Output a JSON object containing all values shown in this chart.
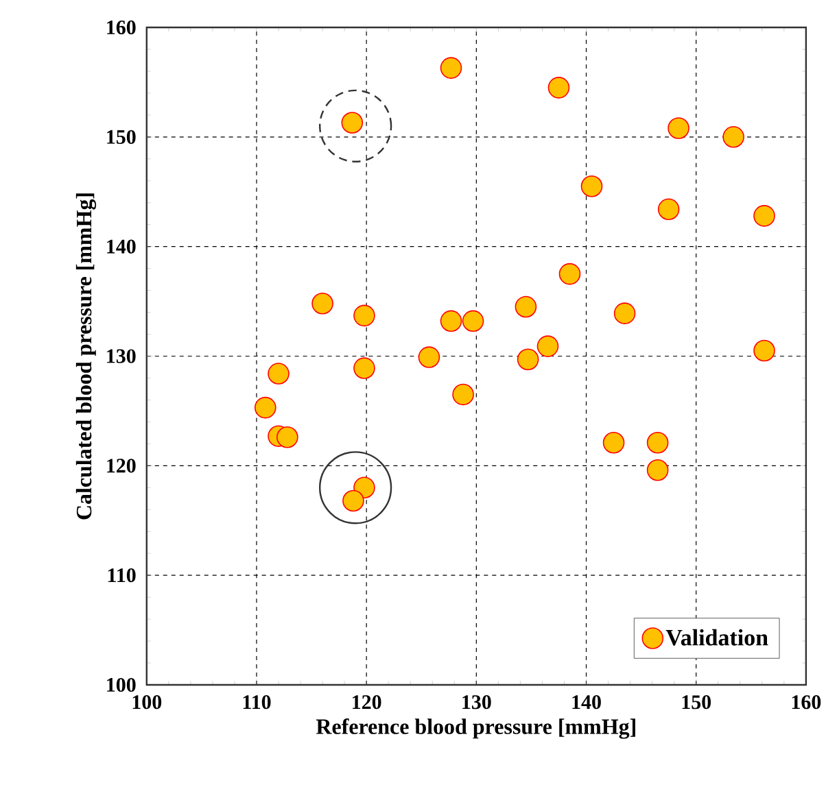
{
  "chart_data": {
    "type": "scatter",
    "xlabel": "Reference blood pressure [mmHg]",
    "ylabel": "Calculated blood pressure [mmHg]",
    "xlim": [
      100,
      160
    ],
    "ylim": [
      100,
      160
    ],
    "xticks": [
      100,
      110,
      120,
      130,
      140,
      150,
      160
    ],
    "yticks": [
      100,
      110,
      120,
      130,
      140,
      150,
      160
    ],
    "grid": true,
    "legend": "bottom right",
    "marker": "circle",
    "series": [
      {
        "name": "Validation",
        "color": "#ffc000",
        "x": [
          118.7,
          127.7,
          137.5,
          148.4,
          153.4,
          140.5,
          147.5,
          156.2,
          138.5,
          116,
          119.8,
          127.7,
          129.7,
          134.5,
          143.5,
          125.7,
          134.7,
          136.5,
          156.2,
          119.8,
          112,
          110.8,
          128.8,
          112,
          112.8,
          142.5,
          146.5,
          146.5,
          119.8,
          118.8
        ],
        "values": [
          151.3,
          156.3,
          154.5,
          150.8,
          150,
          145.5,
          143.4,
          142.8,
          137.5,
          134.8,
          133.7,
          133.2,
          133.2,
          134.5,
          133.9,
          129.9,
          129.7,
          130.9,
          130.5,
          128.9,
          128.4,
          125.3,
          126.5,
          122.7,
          122.6,
          122.1,
          122.1,
          119.6,
          118,
          116.8
        ]
      }
    ]
  }
}
